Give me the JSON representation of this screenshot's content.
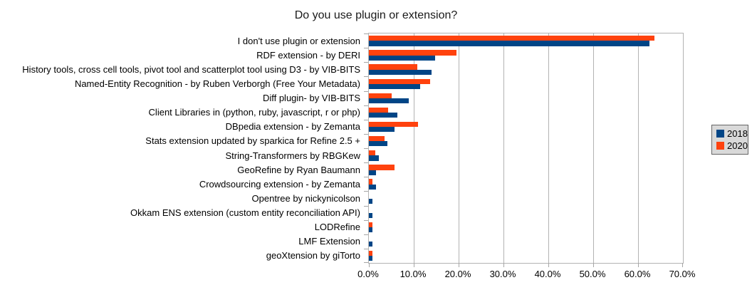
{
  "title": "Do you use plugin or extension?",
  "colors": {
    "series_2018": "#004586",
    "series_2020": "#FF420E",
    "grid": "#b3b3b3",
    "axis": "#a6a6a6",
    "legend_bg": "#d9d9d9",
    "legend_border": "#666666",
    "title_text": "#1a1a1a"
  },
  "chart_data": {
    "type": "bar",
    "orientation": "horizontal",
    "title": "Do you use plugin or extension?",
    "xlabel": "",
    "ylabel": "",
    "xlim": [
      0,
      70
    ],
    "x_tick_labels": [
      "0.0%",
      "10.0%",
      "20.0%",
      "30.0%",
      "40.0%",
      "50.0%",
      "60.0%",
      "70.0%"
    ],
    "grid": true,
    "legend_position": "right",
    "categories": [
      "I don't use plugin or extension",
      "RDF extension - by DERI",
      "History tools, cross cell tools, pivot tool and scatterplot tool using D3 - by VIB-BITS",
      "Named-Entity Recognition - by Ruben Verborgh (Free Your Metadata)",
      "Diff plugin- by VIB-BITS",
      "Client Libraries in (python, ruby, javascript, r or php)",
      "DBpedia extension - by Zemanta",
      "Stats extension updated by sparkica for Refine 2.5 +",
      "String-Transformers by RBGKew",
      "GeoRefine by Ryan Baumann",
      "Crowdsourcing extension - by Zemanta",
      "Opentree by nickynicolson",
      "Okkam ENS extension (custom entity reconciliation API)",
      "LODRefine",
      "LMF Extension",
      "geoXtension by giTorto"
    ],
    "series": [
      {
        "name": "2018",
        "color": "#004586",
        "values": [
          62.5,
          14.7,
          13.9,
          11.4,
          8.9,
          6.4,
          5.7,
          4.1,
          2.2,
          1.6,
          1.6,
          0.8,
          0.8,
          0.8,
          0.8,
          0.8
        ]
      },
      {
        "name": "2020",
        "color": "#FF420E",
        "values": [
          63.6,
          19.6,
          10.8,
          13.7,
          5.0,
          4.3,
          10.9,
          3.5,
          1.4,
          5.7,
          0.8,
          0,
          0,
          0.8,
          0,
          0.8
        ]
      }
    ]
  }
}
